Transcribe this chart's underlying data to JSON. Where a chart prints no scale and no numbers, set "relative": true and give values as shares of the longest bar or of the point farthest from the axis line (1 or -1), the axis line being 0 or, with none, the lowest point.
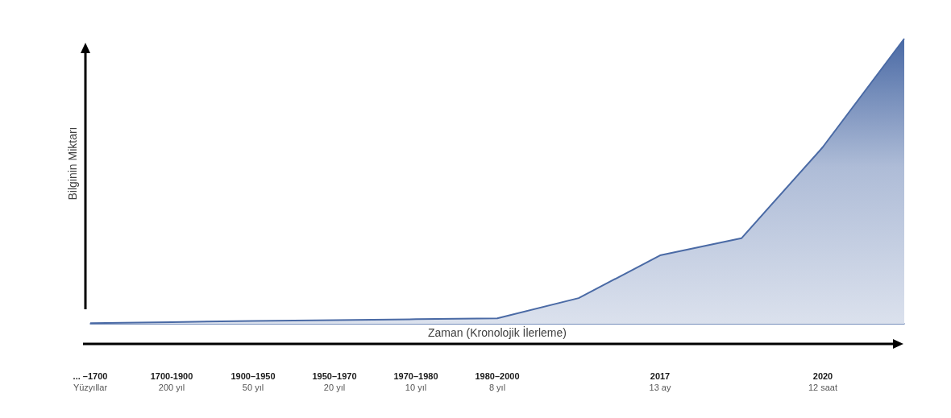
{
  "chart_data": {
    "type": "area",
    "xlabel": "Zaman (Kronolojik İlerleme)",
    "ylabel": "Bilginin Miktarı",
    "categories": [
      "... –1700\nYüzyıllar",
      "1700-1900\n200 yıl",
      "1900–1950\n50 yıl",
      "1950–1970\n20 yıl",
      "1970–1980\n10 yıl",
      "1980–2000\n8 yıl",
      null,
      "2017\n13 ay",
      null,
      "2020\n12 saat",
      null
    ],
    "values": [
      0.002,
      0.006,
      0.01,
      0.013,
      0.016,
      0.019,
      0.09,
      0.24,
      0.3,
      0.62,
      1
    ],
    "color": "#4a6aa5",
    "relative": true,
    "marker": "none",
    "tick_labels": "x"
  }
}
